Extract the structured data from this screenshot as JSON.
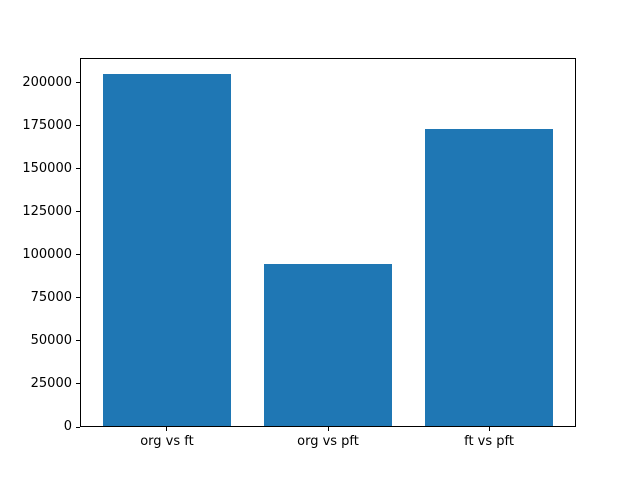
{
  "chart_data": {
    "type": "bar",
    "title": "",
    "xlabel": "",
    "ylabel": "",
    "categories": [
      "org vs ft",
      "org vs pft",
      "ft vs pft"
    ],
    "values": [
      205000,
      95000,
      173000
    ],
    "ylim": [
      0,
      214500
    ],
    "yticks": [
      0,
      25000,
      50000,
      75000,
      100000,
      125000,
      150000,
      175000,
      200000
    ],
    "bar_color": "#1f77b4",
    "grid": false,
    "legend": null,
    "background_color": "#ffffff",
    "axes_color": "#000000",
    "tick_label_color": "#000000"
  }
}
